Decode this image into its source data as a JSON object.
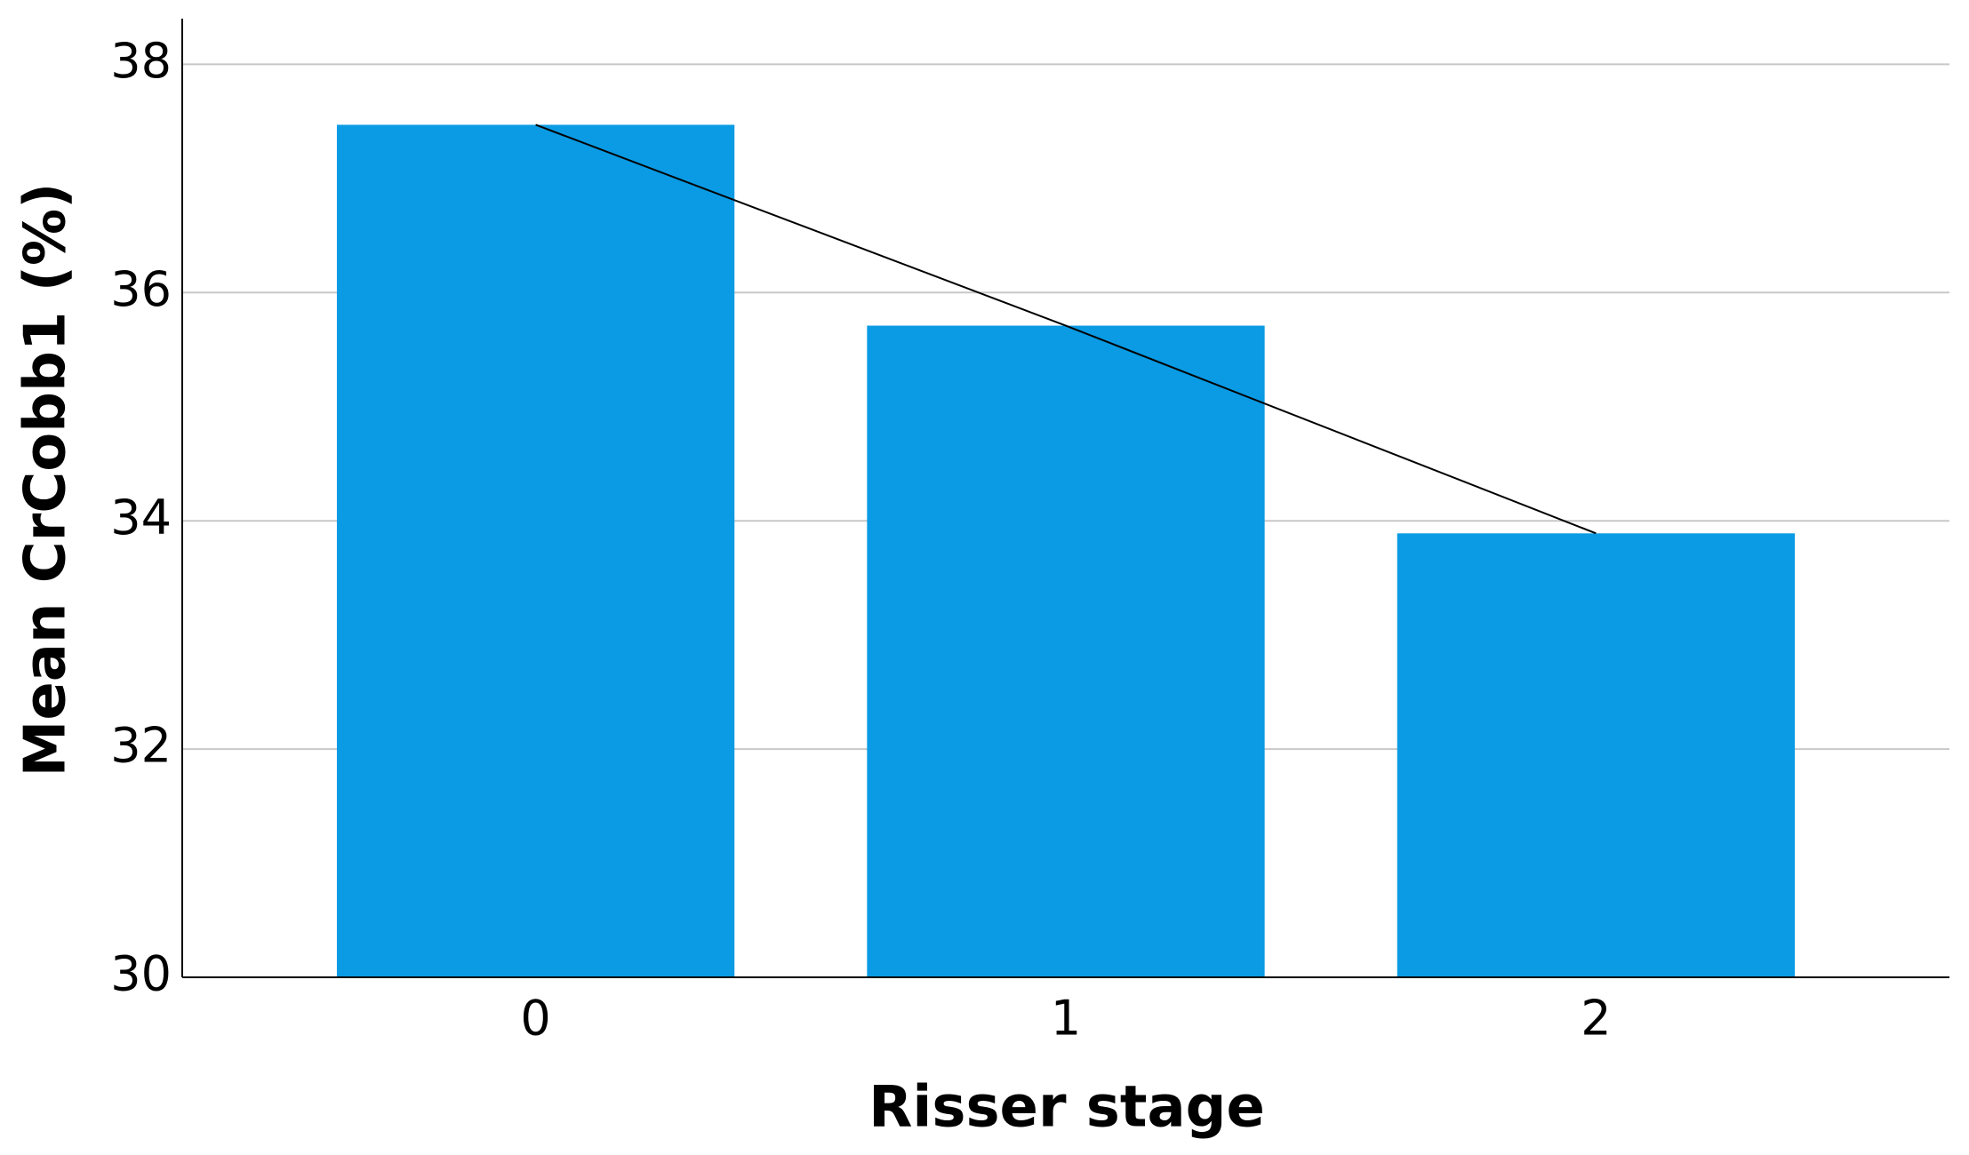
{
  "chart_data": {
    "type": "bar",
    "categories": [
      "0",
      "1",
      "2"
    ],
    "values": [
      37.47,
      35.71,
      33.89
    ],
    "color": "#0a9be4",
    "connect_line": true,
    "line_color": "#000000",
    "xlabel": "Risser stage",
    "ylabel": "Mean CrCobb1 (%)",
    "ylim": [
      30,
      38.4
    ],
    "yticks": [
      30,
      32,
      34,
      36,
      38
    ],
    "grid": true
  }
}
